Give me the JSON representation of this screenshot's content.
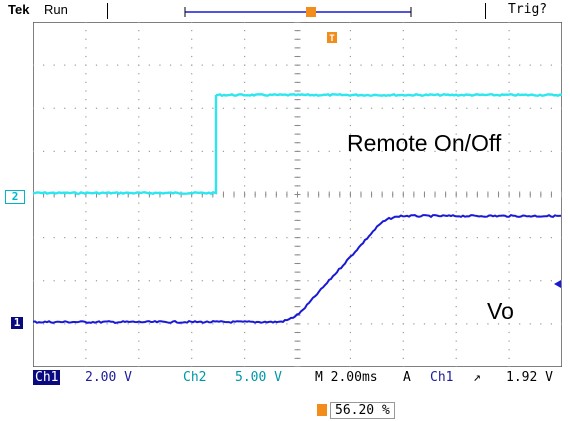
{
  "header": {
    "brand": "Tek",
    "status": "Run",
    "trigger_status": "Trig?"
  },
  "screen": {
    "channel2_marker": "2",
    "channel1_marker": "1",
    "label_remote": "Remote On/Off",
    "label_output": "Vo",
    "trigger_marker_letter": "T"
  },
  "status_bar": {
    "ch1_name": "Ch1",
    "ch1_scale": "2.00 V",
    "ch2_name": "Ch2",
    "ch2_scale": "5.00 V",
    "timebase": "M 2.00ms",
    "acq_mode": "A",
    "trigger_source": "Ch1",
    "trigger_level": "1.92 V"
  },
  "trigger_position": {
    "value": "56.20 %"
  },
  "colors": {
    "ch1": "#1a1ad6",
    "ch2": "#2ee6f0",
    "trigger": "#f28c1a",
    "grid": "#9a9a9a"
  }
}
